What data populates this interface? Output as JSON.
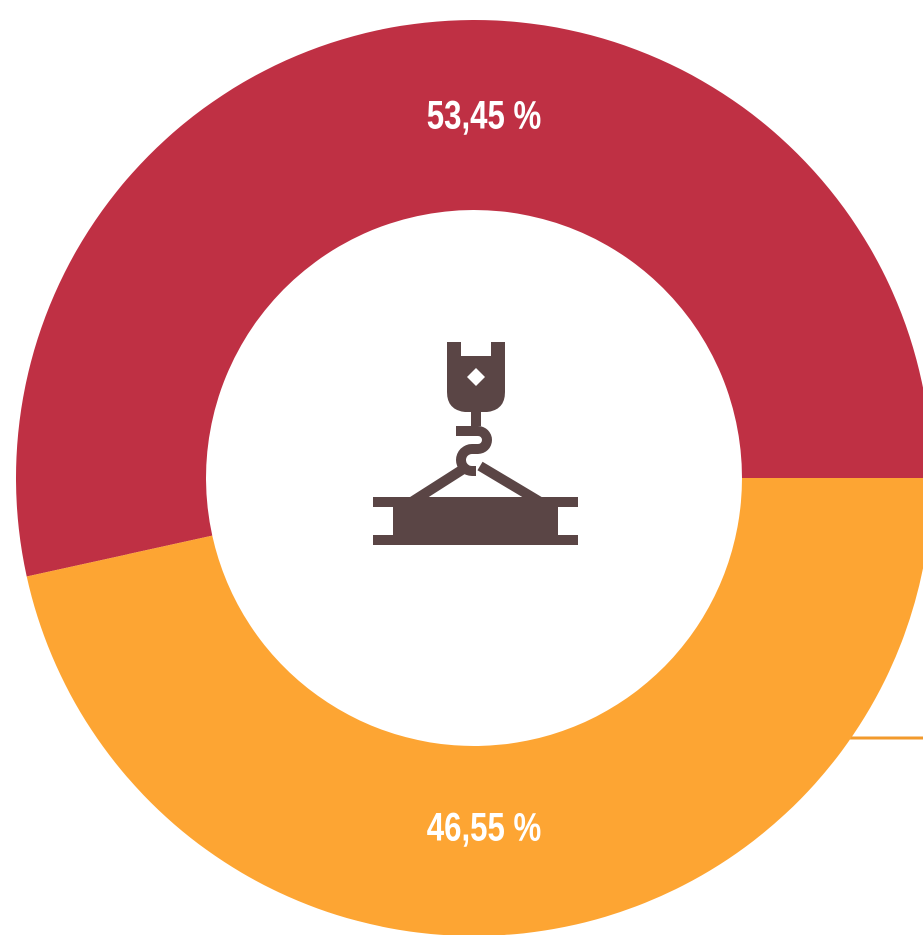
{
  "chart_data": {
    "type": "pie",
    "donut": true,
    "values": [
      53.45,
      46.55
    ],
    "value_labels": [
      "53,45 %",
      "46,55 %"
    ],
    "colors": [
      "#bf3044",
      "#fda533"
    ]
  }
}
